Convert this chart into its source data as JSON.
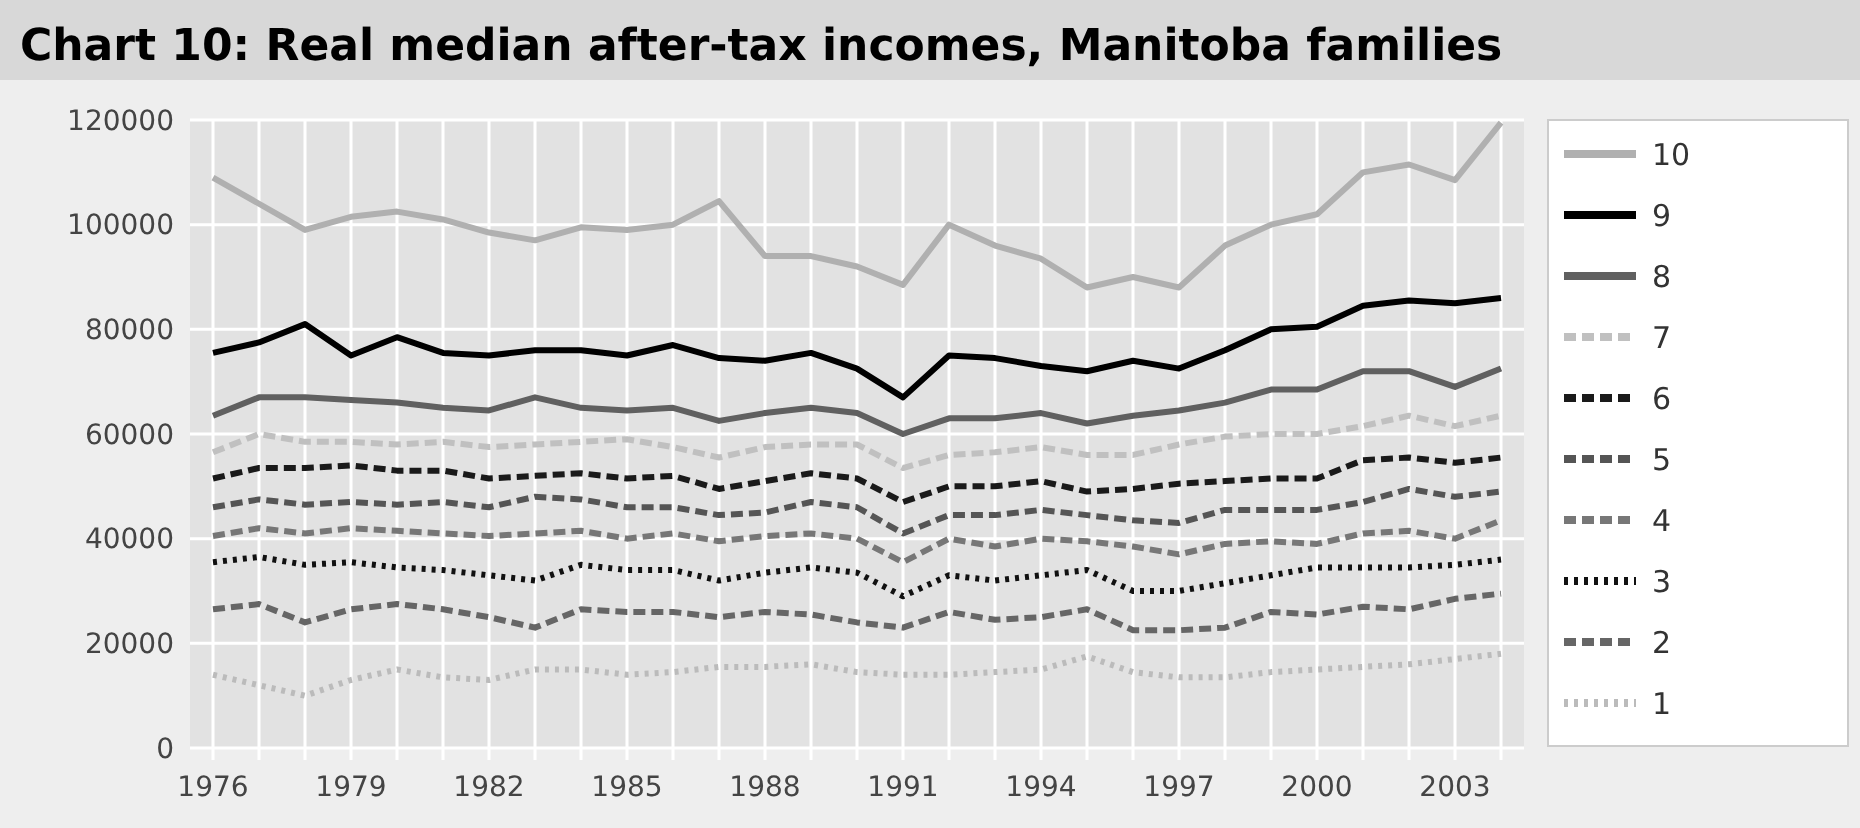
{
  "chart_data": {
    "type": "line",
    "title": "Chart 10: Real median after-tax incomes, Manitoba families",
    "x": [
      1976,
      1977,
      1978,
      1979,
      1980,
      1981,
      1982,
      1983,
      1984,
      1985,
      1986,
      1987,
      1988,
      1989,
      1990,
      1991,
      1992,
      1993,
      1994,
      1995,
      1996,
      1997,
      1998,
      1999,
      2000,
      2001,
      2002,
      2003,
      2004
    ],
    "xlim": [
      1975.5,
      2004.5
    ],
    "xticks": [
      1976,
      {
        "value": 1977,
        "label": null
      },
      {
        "value": 1978,
        "label": null
      },
      1979,
      {
        "value": 1980,
        "label": null
      },
      {
        "value": 1981,
        "label": null
      },
      1982,
      {
        "value": 1983,
        "label": null
      },
      {
        "value": 1984,
        "label": null
      },
      1985,
      {
        "value": 1986,
        "label": null
      },
      {
        "value": 1987,
        "label": null
      },
      1988,
      {
        "value": 1989,
        "label": null
      },
      {
        "value": 1990,
        "label": null
      },
      1991,
      {
        "value": 1992,
        "label": null
      },
      {
        "value": 1993,
        "label": null
      },
      1994,
      {
        "value": 1995,
        "label": null
      },
      {
        "value": 1996,
        "label": null
      },
      1997,
      {
        "value": 1998,
        "label": null
      },
      {
        "value": 1999,
        "label": null
      },
      2000,
      {
        "value": 2001,
        "label": null
      },
      {
        "value": 2002,
        "label": null
      },
      2003,
      {
        "value": 2004,
        "label": null
      }
    ],
    "ylim": [
      0,
      120000
    ],
    "yticks": [
      0,
      20000,
      40000,
      60000,
      80000,
      100000,
      120000
    ],
    "grid": true,
    "legend": "right",
    "marker": "none",
    "series": [
      {
        "name": "10",
        "color": "#b0b0b0",
        "line_style": "solid",
        "values": [
          109000,
          104000,
          99000,
          101500,
          102500,
          101000,
          98500,
          97000,
          99500,
          99000,
          100000,
          104500,
          94000,
          94000,
          92000,
          88500,
          100000,
          96000,
          93500,
          88000,
          90000,
          88000,
          96000,
          100000,
          102000,
          110000,
          111500,
          108500,
          119500
        ]
      },
      {
        "name": "9",
        "color": "#000000",
        "line_style": "solid",
        "values": [
          75500,
          77500,
          81000,
          75000,
          78500,
          75500,
          75000,
          76000,
          76000,
          75000,
          77000,
          74500,
          74000,
          75500,
          72500,
          67000,
          75000,
          74500,
          73000,
          72000,
          74000,
          72500,
          76000,
          80000,
          80500,
          84500,
          85500,
          85000,
          86000
        ]
      },
      {
        "name": "8",
        "color": "#606060",
        "line_style": "solid",
        "values": [
          63500,
          67000,
          67000,
          66500,
          66000,
          65000,
          64500,
          67000,
          65000,
          64500,
          65000,
          62500,
          64000,
          65000,
          64000,
          60000,
          63000,
          63000,
          64000,
          62000,
          63500,
          64500,
          66000,
          68500,
          68500,
          72000,
          72000,
          69000,
          72500
        ]
      },
      {
        "name": "7",
        "color": "#c0c0c0",
        "line_style": "dashed",
        "values": [
          56500,
          60000,
          58500,
          58500,
          58000,
          58500,
          57500,
          58000,
          58500,
          59000,
          57500,
          55500,
          57500,
          58000,
          58000,
          53500,
          56000,
          56500,
          57500,
          56000,
          56000,
          58000,
          59500,
          60000,
          60000,
          61500,
          63500,
          61500,
          63500
        ]
      },
      {
        "name": "6",
        "color": "#1a1a1a",
        "line_style": "dashed",
        "values": [
          51500,
          53500,
          53500,
          54000,
          53000,
          53000,
          51500,
          52000,
          52500,
          51500,
          52000,
          49500,
          51000,
          52500,
          51500,
          47000,
          50000,
          50000,
          51000,
          49000,
          49500,
          50500,
          51000,
          51500,
          51500,
          55000,
          55500,
          54500,
          55500
        ]
      },
      {
        "name": "5",
        "color": "#555555",
        "line_style": "dashed",
        "values": [
          46000,
          47500,
          46500,
          47000,
          46500,
          47000,
          46000,
          48000,
          47500,
          46000,
          46000,
          44500,
          45000,
          47000,
          46000,
          41000,
          44500,
          44500,
          45500,
          44500,
          43500,
          43000,
          45500,
          45500,
          45500,
          47000,
          49500,
          48000,
          49000
        ]
      },
      {
        "name": "4",
        "color": "#777777",
        "line_style": "dashed",
        "values": [
          40500,
          42000,
          41000,
          42000,
          41500,
          41000,
          40500,
          41000,
          41500,
          40000,
          41000,
          39500,
          40500,
          41000,
          40000,
          35500,
          40000,
          38500,
          40000,
          39500,
          38500,
          37000,
          39000,
          39500,
          39000,
          41000,
          41500,
          40000,
          43500
        ]
      },
      {
        "name": "3",
        "color": "#111111",
        "line_style": "dotted",
        "values": [
          35500,
          36500,
          35000,
          35500,
          34500,
          34000,
          33000,
          32000,
          35000,
          34000,
          34000,
          32000,
          33500,
          34500,
          33500,
          29000,
          33000,
          32000,
          33000,
          34000,
          30000,
          30000,
          31500,
          33000,
          34500,
          34500,
          34500,
          35000,
          36000
        ]
      },
      {
        "name": "2",
        "color": "#666666",
        "line_style": "dashed",
        "values": [
          26500,
          27500,
          24000,
          26500,
          27500,
          26500,
          25000,
          23000,
          26500,
          26000,
          26000,
          25000,
          26000,
          25500,
          24000,
          23000,
          26000,
          24500,
          25000,
          26500,
          22500,
          22500,
          23000,
          26000,
          25500,
          27000,
          26500,
          28500,
          29500
        ]
      },
      {
        "name": "1",
        "color": "#bbbbbb",
        "line_style": "dotted",
        "values": [
          14000,
          12000,
          10000,
          13000,
          15000,
          13500,
          13000,
          15000,
          15000,
          14000,
          14500,
          15500,
          15500,
          16000,
          14500,
          14000,
          14000,
          14500,
          15000,
          17500,
          14500,
          13500,
          13500,
          14500,
          15000,
          15500,
          16000,
          17000,
          18000
        ]
      }
    ]
  }
}
